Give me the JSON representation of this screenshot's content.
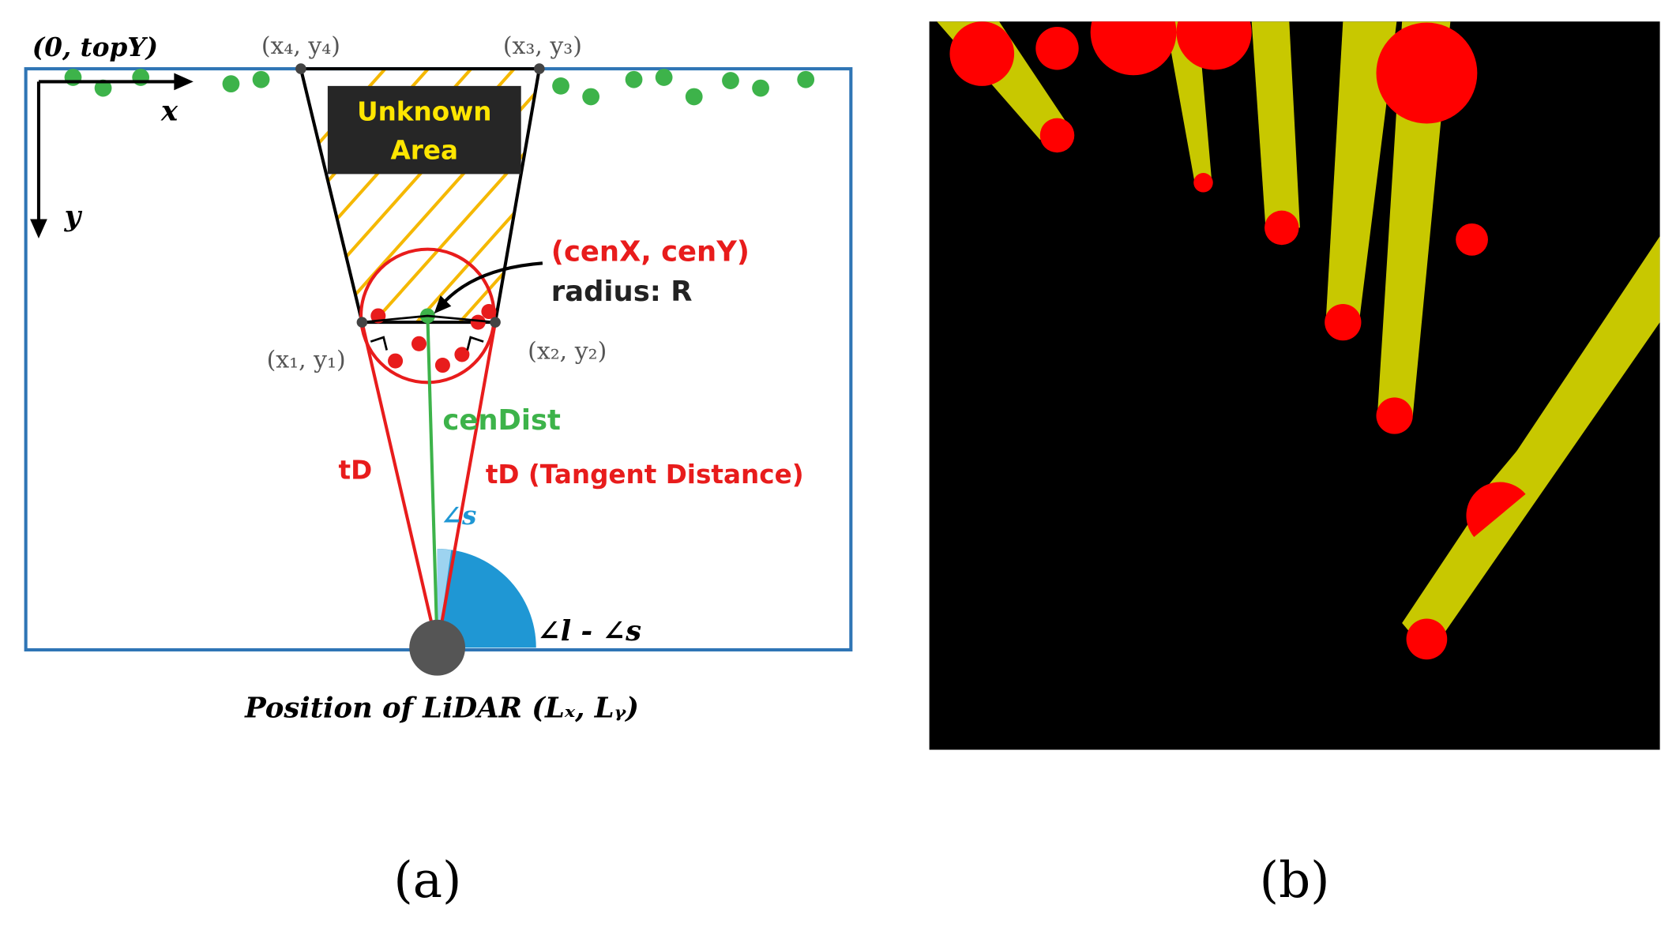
{
  "panel_a": {
    "origin_label": "(0, topY)",
    "axis_x": "x",
    "axis_y": "y",
    "corner_4": "(x₄, y₄)",
    "corner_3": "(x₃, y₃)",
    "corner_1": "(x₁, y₁)",
    "corner_2": "(x₂, y₂)",
    "unknown_line1": "Unknown",
    "unknown_line2": "Area",
    "center_label": "(cenX, cenY)",
    "radius_label": "radius: R",
    "cen_dist": "cenDist",
    "td_left": "tD",
    "td_right": "tD (Tangent Distance)",
    "angle_s": "∠s",
    "angle_ls": "∠l - ∠s",
    "lidar_label": "Position of LiDAR (Lₓ, Lᵧ)",
    "caption": "(a)"
  },
  "panel_b": {
    "caption": "(b)"
  }
}
